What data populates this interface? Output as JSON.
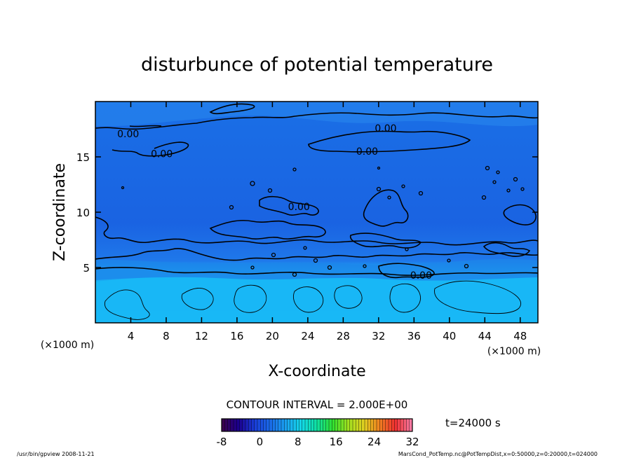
{
  "chart_data": {
    "type": "heatmap",
    "title": "disturbunce of potential temperature",
    "xlabel": "X-coordinate",
    "ylabel": "Z-coordinate",
    "x_unit": "(×1000 m)",
    "y_unit": "(×1000 m)",
    "xlim": [
      0,
      50
    ],
    "ylim": [
      0,
      20
    ],
    "x_ticks": [
      4,
      8,
      12,
      16,
      20,
      24,
      28,
      32,
      36,
      40,
      44,
      48
    ],
    "y_ticks": [
      5,
      10,
      15
    ],
    "contour_labels": [
      {
        "text": "0.00",
        "x": 3.7,
        "z": 17.1
      },
      {
        "text": "0.00",
        "x": 7.5,
        "z": 15.3
      },
      {
        "text": "0.00",
        "x": 32.8,
        "z": 17.6
      },
      {
        "text": "0.00",
        "x": 30.7,
        "z": 15.5
      },
      {
        "text": "0.00",
        "x": 23.0,
        "z": 10.5
      },
      {
        "text": "0.00",
        "x": 36.8,
        "z": 4.3
      }
    ],
    "contour_interval_text": "CONTOUR INTERVAL = 2.000E+00",
    "time_label": "t=24000 s",
    "colorbar": {
      "min": -8,
      "max": 32,
      "ticks": [
        -8,
        0,
        8,
        16,
        24,
        32
      ],
      "colors": [
        "#3a0050",
        "#1b0090",
        "#1a3dd8",
        "#1a6ae8",
        "#1aa0f0",
        "#14d8e8",
        "#10e0a0",
        "#30e030",
        "#a0e020",
        "#e0d020",
        "#f08020",
        "#f03030",
        "#f878a0"
      ]
    }
  },
  "footer": {
    "left": "/usr/bin/gpview   2008-11-21",
    "right": "MarsCond_PotTemp.nc@PotTempDist,x=0:50000,z=0:20000,t=024000"
  }
}
